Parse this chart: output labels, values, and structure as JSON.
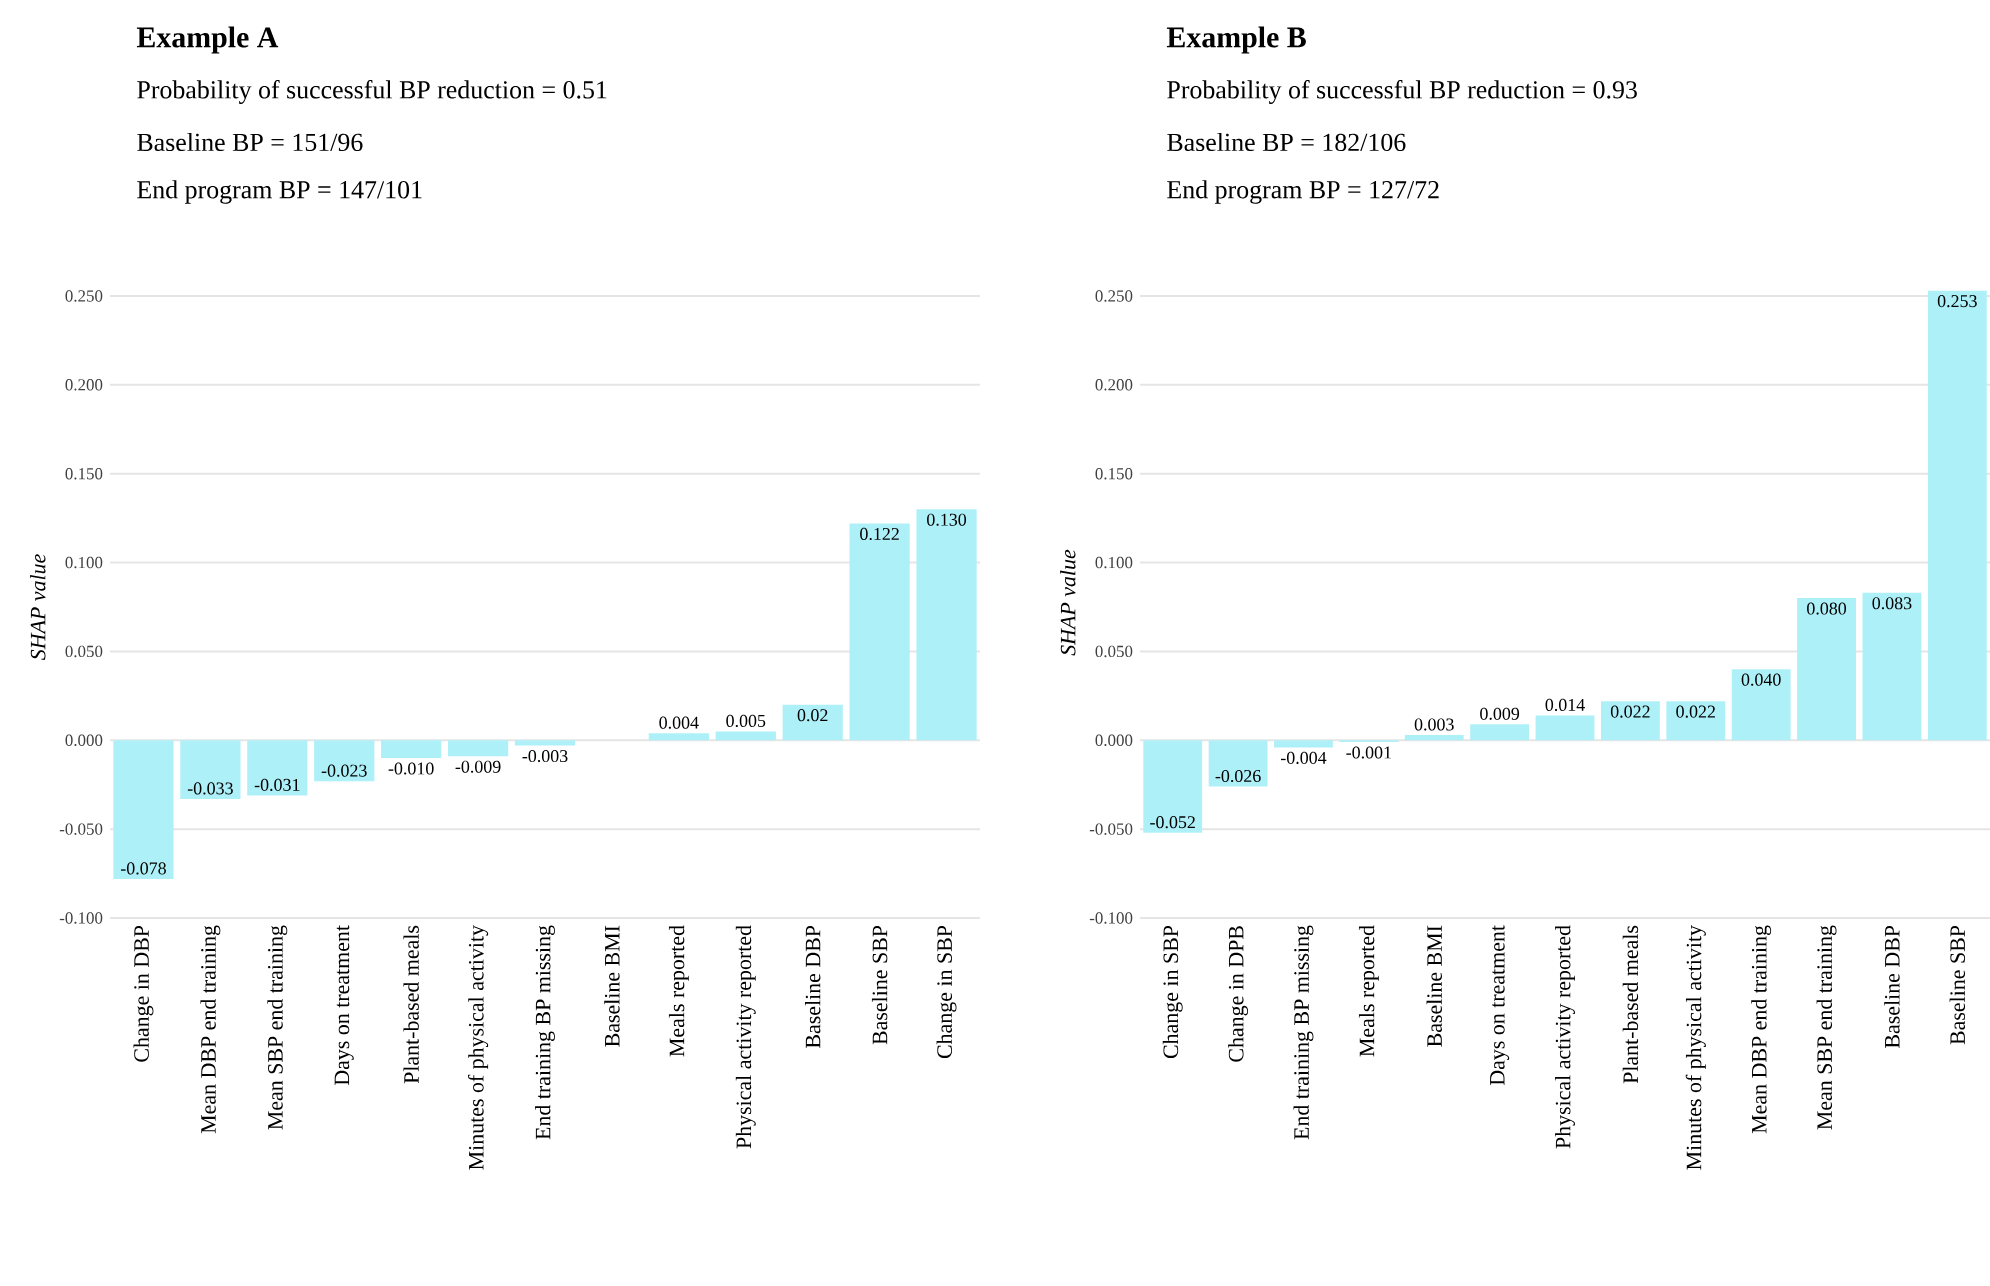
{
  "chart_data": [
    {
      "type": "bar",
      "title": "Example A",
      "annotations": [
        "Probability of successful BP reduction = 0.51",
        "Baseline BP = 151/96",
        "End program BP = 147/101"
      ],
      "ylabel": "SHAP value",
      "categories": [
        "Change in DBP",
        "Mean DBP end training",
        "Mean SBP end training",
        "Days on treatment",
        "Plant-based meals",
        "Minutes of physical activity",
        "End training BP missing",
        "Baseline BMI",
        "Meals reported",
        "Physical activity reported",
        "Baseline DBP",
        "Baseline SBP",
        "Change in SBP"
      ],
      "values": [
        -0.078,
        -0.033,
        -0.031,
        -0.023,
        -0.01,
        -0.009,
        -0.003,
        0,
        0.004,
        0.005,
        0.02,
        0.122,
        0.13
      ],
      "value_labels": [
        "-0.078",
        "-0.033",
        "-0.031",
        "-0.023",
        "-0.010",
        "-0.009",
        "-0.003",
        null,
        "0.004",
        "0.005",
        "0.02",
        "0.122",
        "0.130"
      ],
      "color": "#aef0f8",
      "ylim": [
        -0.1,
        0.25
      ],
      "yticks": [
        {
          "value": -0.1,
          "label": "-0.100"
        },
        {
          "value": -0.05,
          "label": "-0.050"
        },
        {
          "value": 0,
          "label": "0.000"
        },
        {
          "value": 0.05,
          "label": "0.050"
        },
        {
          "value": 0.1,
          "label": "0.100"
        },
        {
          "value": 0.15,
          "label": "0.150"
        },
        {
          "value": 0.2,
          "label": "0.200"
        },
        {
          "value": 0.25,
          "label": "0.250"
        }
      ],
      "grid": "y"
    },
    {
      "type": "bar",
      "title": "Example B",
      "annotations": [
        "Probability of successful BP reduction = 0.93",
        "Baseline BP = 182/106",
        "End program BP = 127/72"
      ],
      "ylabel": "SHAP value",
      "categories": [
        "Change in SBP",
        "Change in DPB",
        "End training BP missing",
        "Meals reported",
        "Baseline BMI",
        "Days on treatment",
        "Physical activity reported",
        "Plant-based meals",
        "Minutes of physical activity",
        "Mean DBP end training",
        "Mean SBP end training",
        "Baseline DBP",
        "Baseline SBP"
      ],
      "values": [
        -0.052,
        -0.026,
        -0.004,
        -0.001,
        0.003,
        0.009,
        0.014,
        0.022,
        0.022,
        0.04,
        0.08,
        0.083,
        0.253
      ],
      "value_labels": [
        "-0.052",
        "-0.026",
        "-0.004",
        "-0.001",
        "0.003",
        "0.009",
        "0.014",
        "0.022",
        "0.022",
        "0.040",
        "0.080",
        "0.083",
        "0.253"
      ],
      "color": "#aef0f8",
      "ylim": [
        -0.1,
        0.255
      ],
      "yticks": [
        {
          "value": -0.1,
          "label": "-0.100"
        },
        {
          "value": -0.05,
          "label": "-0.050"
        },
        {
          "value": 0,
          "label": "0.000"
        },
        {
          "value": 0.05,
          "label": "0.050"
        },
        {
          "value": 0.1,
          "label": "0.100"
        },
        {
          "value": 0.15,
          "label": "0.150"
        },
        {
          "value": 0.2,
          "label": "0.200"
        },
        {
          "value": 0.25,
          "label": "0.250"
        }
      ],
      "grid": "y"
    }
  ]
}
